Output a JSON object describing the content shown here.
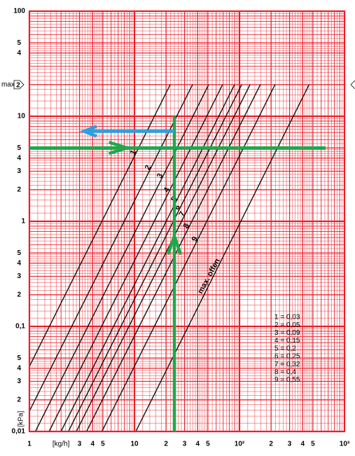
{
  "chart_data": {
    "type": "line",
    "x_scale": "log",
    "y_scale": "log",
    "xlim": [
      1,
      1000
    ],
    "ylim": [
      0.01,
      100
    ],
    "grid": true,
    "grid_color": "#e8202a",
    "y_label": "[kPa]",
    "x_label": "[kg/h]",
    "max_label": "max.",
    "xticks": [
      1,
      {
        "value": 3,
        "label": "3"
      },
      {
        "value": 4,
        "label": "4"
      },
      {
        "value": 5,
        "label": "5"
      },
      10,
      {
        "value": 20,
        "label": "2"
      },
      {
        "value": 30,
        "label": "3"
      },
      {
        "value": 40,
        "label": "4"
      },
      {
        "value": 50,
        "label": "5"
      },
      {
        "value": 100,
        "label": "10²"
      },
      {
        "value": 200,
        "label": "2"
      },
      {
        "value": 300,
        "label": "3"
      },
      {
        "value": 400,
        "label": "4"
      },
      {
        "value": 500,
        "label": "5"
      },
      {
        "value": 1000,
        "label": "10³"
      }
    ],
    "x_label_at": 2,
    "yticks": [
      100,
      {
        "value": 50,
        "label": "5"
      },
      {
        "value": 40,
        "label": "4"
      },
      {
        "value": 20,
        "label": "2"
      },
      10,
      5,
      4,
      3,
      2,
      1,
      {
        "value": 0.5,
        "label": "5"
      },
      {
        "value": 0.4,
        "label": "4"
      },
      {
        "value": 0.3,
        "label": "3"
      },
      {
        "value": 0.2,
        "label": "2"
      },
      {
        "value": 0.1,
        "label": "0,1"
      },
      {
        "value": 0.05,
        "label": "5"
      },
      {
        "value": 0.04,
        "label": "4"
      },
      {
        "value": 0.03,
        "label": "3"
      },
      {
        "value": 0.02,
        "label": "2"
      },
      {
        "value": 0.01,
        "label": "0,01"
      }
    ],
    "max_tick": 3,
    "line_color": "#111111",
    "series": [
      {
        "name": "1",
        "x": [
          0.49,
          21.9
        ],
        "values": [
          0.01,
          20
        ]
      },
      {
        "name": "2",
        "x": [
          0.8,
          35.7
        ],
        "values": [
          0.01,
          20
        ]
      },
      {
        "name": "3",
        "x": [
          1.14,
          50.9
        ],
        "values": [
          0.01,
          20
        ]
      },
      {
        "name": "4",
        "x": [
          1.54,
          69
        ],
        "values": [
          0.01,
          20
        ]
      },
      {
        "name": "5",
        "x": [
          2.0,
          89.8
        ],
        "values": [
          0.01,
          20
        ]
      },
      {
        "name": "6",
        "x": [
          2.35,
          105
        ],
        "values": [
          0.01,
          20
        ]
      },
      {
        "name": "7",
        "x": [
          2.8,
          126
        ],
        "values": [
          0.01,
          20
        ]
      },
      {
        "name": "8",
        "x": [
          3.5,
          158
        ],
        "values": [
          0.01,
          20
        ]
      },
      {
        "name": "9",
        "x": [
          4.9,
          218
        ],
        "values": [
          0.01,
          20
        ]
      },
      {
        "name": "max. offen",
        "x": [
          10.3,
          460
        ],
        "values": [
          0.01,
          20
        ]
      }
    ],
    "legend": [
      "1 = 0,03",
      "2 = 0,05",
      "3 = 0,09",
      "4 = 0,15",
      "5 = 0,2",
      "6 = 0,25",
      "7 = 0,32",
      "8 = 0,4",
      "9 = 0,55"
    ],
    "guides": [
      {
        "color": "#1fa84a",
        "x": [
          24,
          24
        ],
        "values": [
          0.01,
          10
        ],
        "arrow": "up"
      },
      {
        "color": "#1fa84a",
        "x": [
          1,
          660
        ],
        "values": [
          5,
          5
        ],
        "arrow": "right"
      },
      {
        "color": "#2a9fe0",
        "x": [
          24,
          3.3
        ],
        "values": [
          7.2,
          7.2
        ],
        "arrow": "left"
      }
    ]
  }
}
